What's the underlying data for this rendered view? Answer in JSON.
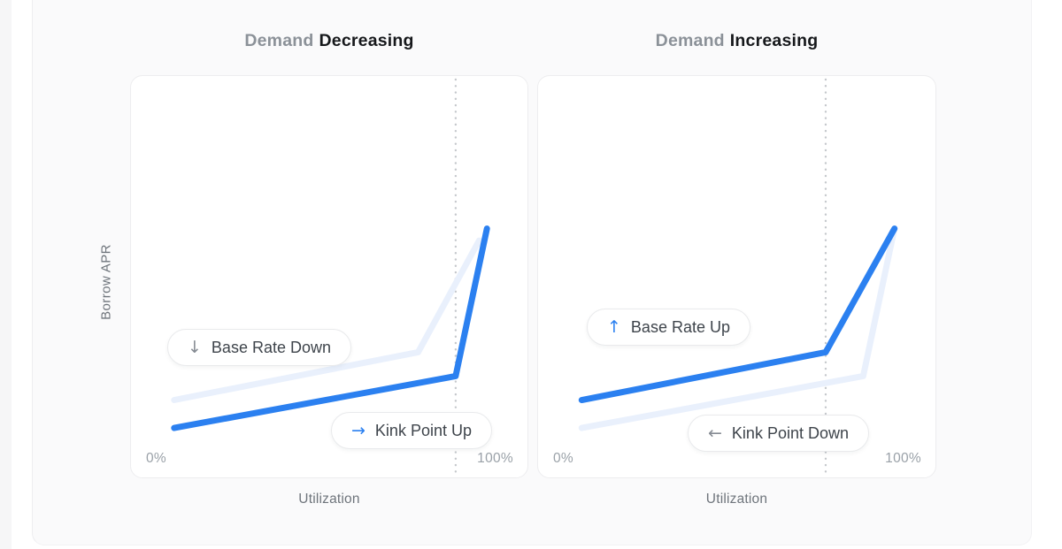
{
  "page": {
    "background": "#ffffff",
    "panel_background": "#fafafb",
    "accent_blue": "#2b80f0",
    "faded_blue": "#e9f0fc"
  },
  "chart_data": [
    {
      "type": "line",
      "title": {
        "muted": "Demand",
        "strong": "Decreasing"
      },
      "xlabel": "Utilization",
      "ylabel": "Borrow APR",
      "x_unit": "%",
      "x_range": [
        0,
        100
      ],
      "x_tick_labels": [
        "0%",
        "100%"
      ],
      "ylim": [
        0,
        60
      ],
      "grid": false,
      "legend": "none",
      "series": [
        {
          "name": "previous-rate-curve",
          "color": "#e9f0fc",
          "width": 7,
          "x": [
            0,
            78,
            97.5
          ],
          "y": [
            12,
            24,
            52
          ]
        },
        {
          "name": "new-rate-curve",
          "color": "#2b80f0",
          "width": 7,
          "x": [
            0,
            90,
            100
          ],
          "y": [
            5,
            18,
            55
          ]
        }
      ],
      "kink_guide": {
        "x": 90,
        "color": "#c5c8cc",
        "style": "dotted"
      },
      "annotations": [
        {
          "arrow": "↓",
          "arrow_color": "#858b93",
          "label": "Base Rate Down"
        },
        {
          "arrow": "→",
          "arrow_color": "#2b80f0",
          "label": "Kink Point Up"
        }
      ]
    },
    {
      "type": "line",
      "title": {
        "muted": "Demand",
        "strong": "Increasing"
      },
      "xlabel": "Utilization",
      "ylabel": "Borrow APR",
      "x_unit": "%",
      "x_range": [
        0,
        100
      ],
      "x_tick_labels": [
        "0%",
        "100%"
      ],
      "ylim": [
        0,
        60
      ],
      "grid": false,
      "legend": "none",
      "series": [
        {
          "name": "previous-rate-curve",
          "color": "#e9f0fc",
          "width": 7,
          "x": [
            0,
            90,
            100
          ],
          "y": [
            5,
            18,
            55
          ]
        },
        {
          "name": "new-rate-curve",
          "color": "#2b80f0",
          "width": 7,
          "x": [
            0,
            78,
            100
          ],
          "y": [
            12,
            24,
            55
          ]
        }
      ],
      "kink_guide": {
        "x": 78,
        "color": "#c5c8cc",
        "style": "dotted"
      },
      "annotations": [
        {
          "arrow": "↑",
          "arrow_color": "#2b80f0",
          "label": "Base Rate Up"
        },
        {
          "arrow": "←",
          "arrow_color": "#858b93",
          "label": "Kink Point Down"
        }
      ]
    }
  ]
}
